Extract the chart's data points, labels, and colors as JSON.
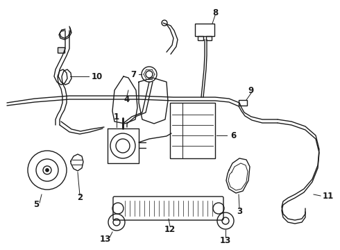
{
  "bg_color": "#ffffff",
  "line_color": "#1a1a1a",
  "fig_width": 4.9,
  "fig_height": 3.6,
  "dpi": 100,
  "label_fontsize": 8.5,
  "lw": 1.0
}
